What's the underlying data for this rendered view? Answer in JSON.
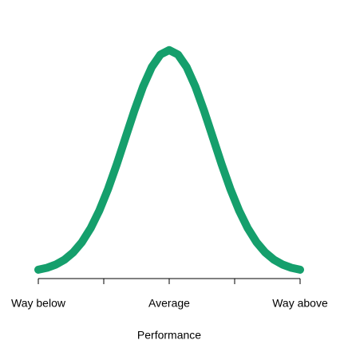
{
  "chart_data": {
    "type": "line",
    "x_label": "Performance",
    "x": [
      -3,
      -2.8,
      -2.6,
      -2.4,
      -2.2,
      -2,
      -1.8,
      -1.6,
      -1.4,
      -1.2,
      -1,
      -0.8,
      -0.6,
      -0.4,
      -0.2,
      0,
      0.2,
      0.4,
      0.6,
      0.8,
      1,
      1.2,
      1.4,
      1.6,
      1.8,
      2,
      2.2,
      2.4,
      2.6,
      2.8,
      3
    ],
    "values": [
      0.0044,
      0.0079,
      0.0136,
      0.0224,
      0.0355,
      0.054,
      0.079,
      0.1109,
      0.1497,
      0.1942,
      0.242,
      0.2897,
      0.3332,
      0.3683,
      0.391,
      0.3989,
      0.391,
      0.3683,
      0.3332,
      0.2897,
      0.242,
      0.1942,
      0.1497,
      0.1109,
      0.079,
      0.054,
      0.0355,
      0.0224,
      0.0136,
      0.0079,
      0.0044
    ],
    "color": "#159f6c",
    "xlim": [
      -3,
      3
    ],
    "ylim": [
      0,
      0.4
    ],
    "xticks": [
      {
        "value": -3,
        "label": "Way below"
      },
      {
        "value": -1.5,
        "label": null
      },
      {
        "value": 0,
        "label": "Average"
      },
      {
        "value": 1.5,
        "label": null
      },
      {
        "value": 3,
        "label": "Way above"
      }
    ]
  }
}
